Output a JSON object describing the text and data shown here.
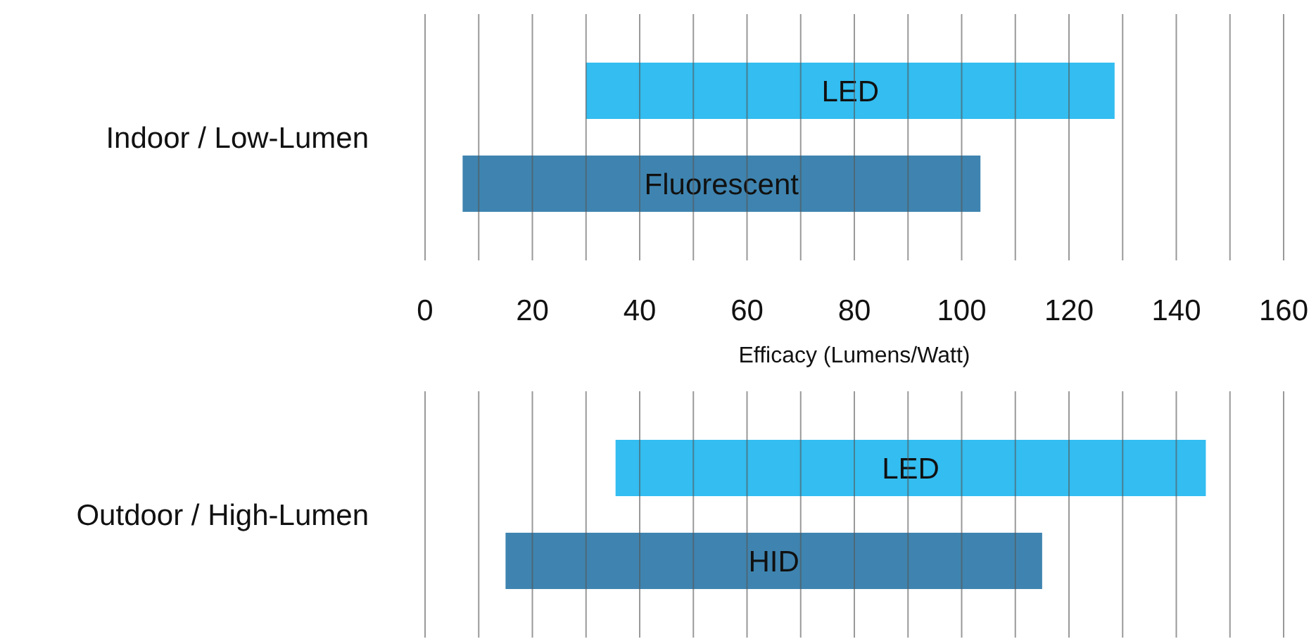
{
  "chart_data": [
    {
      "type": "bar",
      "orientation": "horizontal",
      "categories": [
        "Indoor / Low-Lumen"
      ],
      "xlabel": "Efficacy (Lumens/Watt)",
      "xlim": [
        0,
        160
      ],
      "xticks": [
        0,
        {
          "value": 10,
          "label": null
        },
        20,
        {
          "value": 30,
          "label": null
        },
        40,
        {
          "value": 50,
          "label": null
        },
        60,
        {
          "value": 70,
          "label": null
        },
        80,
        {
          "value": 90,
          "label": null
        },
        100,
        {
          "value": 110,
          "label": null
        },
        120,
        {
          "value": 130,
          "label": null
        },
        140,
        {
          "value": 150,
          "label": null
        },
        160
      ],
      "grid": "x",
      "series": [
        {
          "name": "LED",
          "color": "#33bdf0",
          "values": [
            98.5
          ],
          "base": [
            30
          ]
        },
        {
          "name": "Fluorescent",
          "color": "#3f84b0",
          "values": [
            96.5
          ],
          "base": [
            7
          ]
        }
      ]
    },
    {
      "type": "bar",
      "orientation": "horizontal",
      "categories": [
        "Outdoor / High-Lumen"
      ],
      "xlim": [
        0,
        160
      ],
      "xticks": [
        0,
        {
          "value": 10,
          "label": null
        },
        20,
        {
          "value": 30,
          "label": null
        },
        40,
        {
          "value": 50,
          "label": null
        },
        60,
        {
          "value": 70,
          "label": null
        },
        80,
        {
          "value": 90,
          "label": null
        },
        100,
        {
          "value": 110,
          "label": null
        },
        120,
        {
          "value": 130,
          "label": null
        },
        140,
        {
          "value": 150,
          "label": null
        },
        160
      ],
      "grid": "x",
      "tick_labels": "y",
      "series": [
        {
          "name": "LED",
          "color": "#33bdf0",
          "values": [
            110
          ],
          "base": [
            35.5
          ]
        },
        {
          "name": "HID",
          "color": "#3f84b0",
          "values": [
            100
          ],
          "base": [
            15
          ]
        }
      ]
    }
  ]
}
